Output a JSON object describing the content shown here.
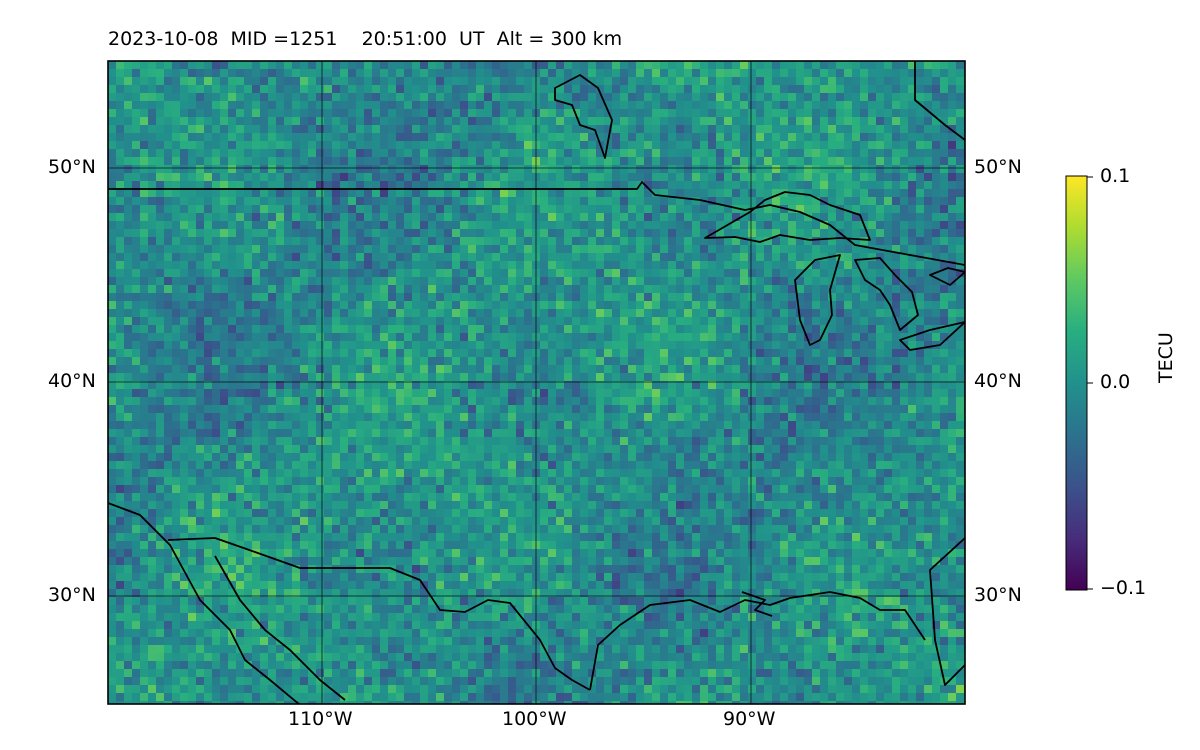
{
  "title": "2023-10-08  MID =1251    20:51:00  UT  Alt = 300 km",
  "map": {
    "lat_range": [
      25,
      55
    ],
    "lon_range": [
      -120,
      -80
    ],
    "lat_gridlines": [
      30,
      40,
      50
    ],
    "lon_gridlines": [
      -110,
      -100,
      -90
    ],
    "lat_labels": [
      "30°N",
      "40°N",
      "50°N"
    ],
    "lon_labels": [
      "110°W",
      "100°W",
      "90°W"
    ],
    "grid": true
  },
  "colorbar": {
    "label": "TECU",
    "colormap": "viridis",
    "vmin": -0.1,
    "vmax": 0.1,
    "tick_labels": [
      "0.1",
      "0.0",
      "−0.1"
    ]
  }
}
